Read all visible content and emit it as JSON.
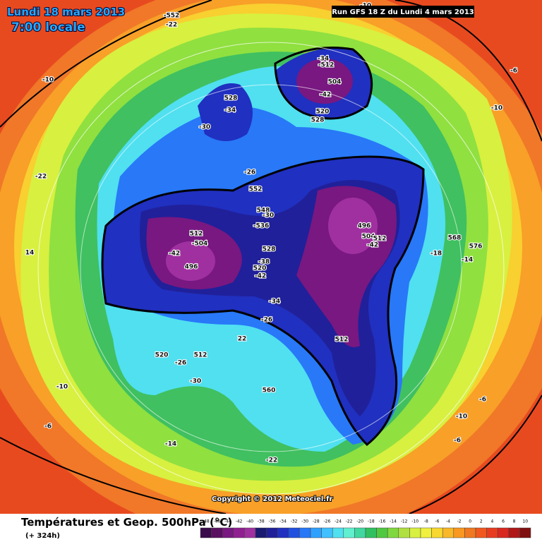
{
  "header": {
    "date": "Lundi 18 mars 2013",
    "time": "7:00 locale",
    "run": "Run GFS 18 Z du Lundi 4 mars 2013"
  },
  "footer": {
    "title": "Températures et Geop. 500hPa (°C)",
    "lead": "(+ 324h)",
    "copyright": "Copyright © 2012 Meteociel.fr"
  },
  "colorbar": {
    "ticks": [
      -48,
      -46,
      -44,
      -42,
      -40,
      -38,
      -36,
      -34,
      -32,
      -30,
      -28,
      -26,
      -24,
      -22,
      -20,
      -18,
      -16,
      -14,
      -12,
      -10,
      -8,
      -6,
      -4,
      -2,
      0,
      2,
      4,
      6,
      8,
      10
    ],
    "colors": [
      "#3a0a4a",
      "#5a1060",
      "#781880",
      "#902090",
      "#a030a0",
      "#1a1a70",
      "#20209a",
      "#2030c0",
      "#2050e0",
      "#2878f8",
      "#30a0ff",
      "#40c0ff",
      "#50e0f0",
      "#60f0d0",
      "#40d8a0",
      "#30c060",
      "#50c840",
      "#80d840",
      "#b0e040",
      "#d8f040",
      "#f0f040",
      "#f8d830",
      "#f8b828",
      "#f89820",
      "#f07820",
      "#f05820",
      "#e83c20",
      "#d82820",
      "#b01818",
      "#801010"
    ]
  },
  "map_labels": [
    "-552",
    "-22",
    "-10",
    "-10",
    "-34",
    "-512",
    "504",
    "-42",
    "520",
    "528",
    "528",
    "-34",
    "-30",
    "-22",
    "-26",
    "552",
    "548",
    "-30",
    "-536",
    "512",
    "-504",
    "-42",
    "496",
    "528",
    "-38",
    "520",
    "-42",
    "-34",
    "-26",
    "496",
    "504",
    "512",
    "-42",
    "-18",
    "568",
    "576",
    "-14",
    "14",
    "-6",
    "-10",
    "22",
    "512",
    "520",
    "512",
    "-26",
    "-30",
    "560",
    "-10",
    "-6",
    "-14",
    "-22",
    "-6",
    "-10",
    "-6"
  ]
}
